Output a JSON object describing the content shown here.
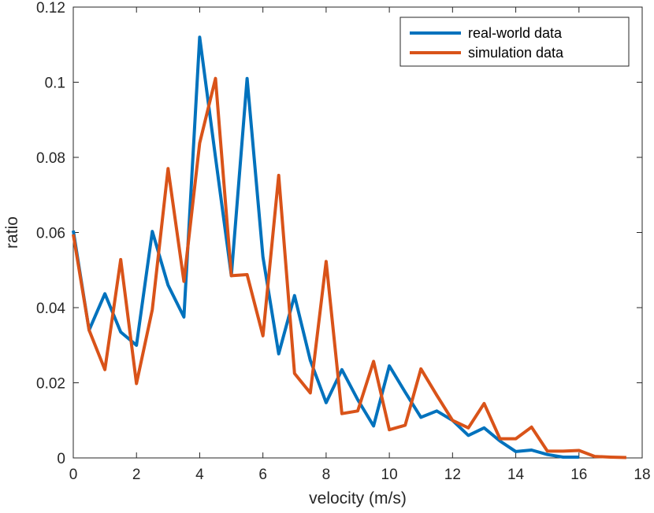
{
  "chart_data": {
    "type": "line",
    "xlabel": "velocity (m/s)",
    "ylabel": "ratio",
    "xlim": [
      0,
      18
    ],
    "ylim": [
      0,
      0.12
    ],
    "xticks": [
      "0",
      "2",
      "4",
      "6",
      "8",
      "10",
      "12",
      "14",
      "16",
      "18"
    ],
    "yticks": [
      "0",
      "0.02",
      "0.04",
      "0.06",
      "0.08",
      "0.1",
      "0.12"
    ],
    "grid": false,
    "legend_position": "top-right",
    "series": [
      {
        "name": "real-world data",
        "color": "#0072BD",
        "x": [
          0,
          0.5,
          1,
          1.5,
          2,
          2.5,
          3,
          3.5,
          4,
          4.5,
          5,
          5.5,
          6,
          6.5,
          7,
          7.5,
          8,
          8.5,
          9,
          9.5,
          10,
          10.5,
          11,
          11.5,
          12,
          12.5,
          13,
          13.5,
          14,
          14.5,
          15,
          15.5,
          16
        ],
        "y": [
          0.0605,
          0.034,
          0.0437,
          0.0335,
          0.03,
          0.0603,
          0.046,
          0.0375,
          0.112,
          0.08,
          0.0485,
          0.101,
          0.0535,
          0.0277,
          0.0432,
          0.026,
          0.0147,
          0.0235,
          0.0155,
          0.0085,
          0.0245,
          0.0175,
          0.0108,
          0.0125,
          0.01,
          0.006,
          0.008,
          0.0045,
          0.0017,
          0.0021,
          0.0009,
          0.0002,
          0.0002
        ]
      },
      {
        "name": "simulation data",
        "color": "#D95319",
        "x": [
          0,
          0.5,
          1,
          1.5,
          2,
          2.5,
          3,
          3.5,
          4,
          4.5,
          5,
          5.5,
          6,
          6.5,
          7,
          7.5,
          8,
          8.5,
          9,
          9.5,
          10,
          10.5,
          11,
          11.5,
          12,
          12.5,
          13,
          13.5,
          14,
          14.5,
          15,
          15.5,
          16,
          16.5,
          17,
          17.5
        ],
        "y": [
          0.0595,
          0.034,
          0.0235,
          0.0528,
          0.0198,
          0.0395,
          0.077,
          0.047,
          0.0838,
          0.101,
          0.0485,
          0.0488,
          0.0325,
          0.0752,
          0.0225,
          0.0173,
          0.0523,
          0.0118,
          0.0125,
          0.0257,
          0.0075,
          0.0087,
          0.0237,
          0.0167,
          0.01,
          0.008,
          0.0145,
          0.0051,
          0.0051,
          0.0082,
          0.0018,
          0.0018,
          0.002,
          0.0004,
          0.0002,
          0.0001
        ]
      }
    ]
  }
}
